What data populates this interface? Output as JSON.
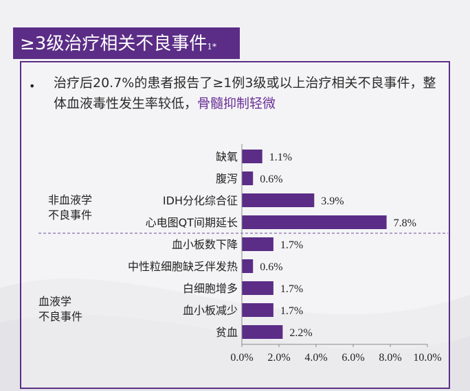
{
  "title": "≥3级治疗相关不良事件",
  "title_sup": "1*",
  "bullet": {
    "text": "治疗后20.7%的患者报告了≥1例3级或以上治疗相关不良事件，整体血液毒性发生率较低，",
    "highlight": "骨髓抑制轻微"
  },
  "groups": {
    "non_heme": "非血液学\n不良事件",
    "heme": "血液学\n不良事件"
  },
  "colors": {
    "accent": "#5b2d86",
    "bar": "#5b2d86",
    "highlight": "#6a2f96"
  },
  "chart_data": {
    "type": "bar",
    "orientation": "horizontal",
    "categories": [
      "缺氧",
      "腹泻",
      "IDH分化综合征",
      "心电图QT间期延长",
      "血小板数下降",
      "中性粒细胞缺乏伴发热",
      "白细胞增多",
      "血小板减少",
      "贫血"
    ],
    "values": [
      1.1,
      0.6,
      3.9,
      7.8,
      1.7,
      0.6,
      1.7,
      1.7,
      2.2
    ],
    "value_labels": [
      "1.1%",
      "0.6%",
      "3.9%",
      "7.8%",
      "1.7%",
      "0.6%",
      "1.7%",
      "1.7%",
      "2.2%"
    ],
    "xlim": [
      0,
      10
    ],
    "xticks": [
      "0.0%",
      "2.0%",
      "4.0%",
      "6.0%",
      "8.0%",
      "10.0%"
    ],
    "xtick_values": [
      0,
      2,
      4,
      6,
      8,
      10
    ],
    "grid": false
  }
}
